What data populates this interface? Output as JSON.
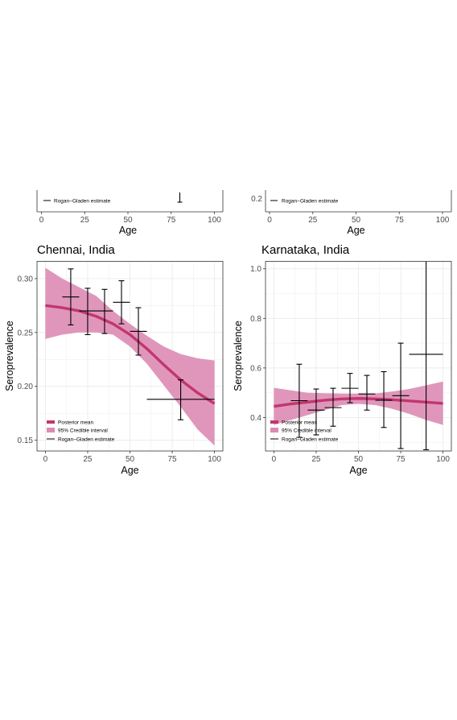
{
  "colors": {
    "mean": "#c2366f",
    "ci": "#dd8bb3",
    "estimate": "#000000",
    "panel_border": "#333333",
    "grid": "#ebebeb"
  },
  "legend": {
    "mean": "Posterior mean",
    "ci": "95% Credible interval",
    "estimate": "Rogan−Gladen estimate"
  },
  "top_strip": {
    "x_title": "Age",
    "x_ticks": [
      "0",
      "25",
      "50",
      "75",
      "100"
    ],
    "right_partial_y_tick": "0.2",
    "legend_text": "Rogan−Gladen estimate"
  },
  "chart_data": [
    {
      "type": "line",
      "title": "Chennai, India",
      "xlabel": "Age",
      "ylabel": "Seroprevalence",
      "xlim": [
        0,
        100
      ],
      "ylim": [
        0.14,
        0.316
      ],
      "x_ticks": [
        0,
        25,
        50,
        75,
        100
      ],
      "y_ticks": [
        0.15,
        0.2,
        0.25,
        0.3
      ],
      "y_tick_labels": [
        "0.15",
        "0.20",
        "0.25",
        "0.30"
      ],
      "grid": true,
      "legend_position": "bottom-left",
      "series": [
        {
          "name": "Posterior mean",
          "x": [
            0,
            10,
            20,
            30,
            40,
            50,
            60,
            70,
            80,
            90,
            100
          ],
          "y": [
            0.275,
            0.273,
            0.27,
            0.265,
            0.258,
            0.248,
            0.235,
            0.22,
            0.206,
            0.194,
            0.184
          ]
        },
        {
          "name": "95% Credible interval",
          "x": [
            0,
            10,
            20,
            30,
            40,
            50,
            60,
            70,
            80,
            90,
            100
          ],
          "lower": [
            0.244,
            0.248,
            0.25,
            0.25,
            0.248,
            0.237,
            0.221,
            0.201,
            0.181,
            0.16,
            0.145
          ],
          "upper": [
            0.31,
            0.3,
            0.292,
            0.284,
            0.27,
            0.258,
            0.247,
            0.237,
            0.23,
            0.226,
            0.224
          ]
        },
        {
          "name": "Rogan−Gladen estimate",
          "points": [
            {
              "x": 15,
              "x_min": 10,
              "x_max": 20,
              "y": 0.283,
              "y_min": 0.257,
              "y_max": 0.309
            },
            {
              "x": 25,
              "x_min": 20,
              "x_max": 30,
              "y": 0.27,
              "y_min": 0.248,
              "y_max": 0.291
            },
            {
              "x": 35,
              "x_min": 30,
              "x_max": 40,
              "y": 0.27,
              "y_min": 0.249,
              "y_max": 0.29
            },
            {
              "x": 45,
              "x_min": 40,
              "x_max": 50,
              "y": 0.278,
              "y_min": 0.258,
              "y_max": 0.298
            },
            {
              "x": 55,
              "x_min": 50,
              "x_max": 60,
              "y": 0.251,
              "y_min": 0.229,
              "y_max": 0.273
            },
            {
              "x": 80,
              "x_min": 60,
              "x_max": 100,
              "y": 0.188,
              "y_min": 0.169,
              "y_max": 0.206
            }
          ]
        }
      ]
    },
    {
      "type": "line",
      "title": "Karnataka, India",
      "xlabel": "Age",
      "ylabel": "Seroprevalence",
      "xlim": [
        0,
        100
      ],
      "ylim": [
        0.265,
        1.03
      ],
      "x_ticks": [
        0,
        25,
        50,
        75,
        100
      ],
      "y_ticks": [
        0.4,
        0.6,
        0.8,
        1.0
      ],
      "y_tick_labels": [
        "0.4",
        "0.6",
        "0.8",
        "1.0"
      ],
      "grid": true,
      "legend_position": "bottom-left",
      "series": [
        {
          "name": "Posterior mean",
          "x": [
            0,
            10,
            20,
            30,
            40,
            50,
            60,
            70,
            80,
            90,
            100
          ],
          "y": [
            0.445,
            0.455,
            0.462,
            0.47,
            0.475,
            0.477,
            0.475,
            0.472,
            0.467,
            0.462,
            0.457
          ]
        },
        {
          "name": "95% Credible interval",
          "x": [
            0,
            10,
            20,
            30,
            40,
            50,
            60,
            70,
            80,
            90,
            100
          ],
          "lower": [
            0.37,
            0.39,
            0.41,
            0.43,
            0.45,
            0.455,
            0.45,
            0.435,
            0.415,
            0.39,
            0.37
          ],
          "upper": [
            0.52,
            0.51,
            0.5,
            0.498,
            0.497,
            0.497,
            0.497,
            0.505,
            0.515,
            0.53,
            0.545
          ]
        },
        {
          "name": "Rogan−Gladen estimate",
          "points": [
            {
              "x": 15,
              "x_min": 10,
              "x_max": 20,
              "y": 0.468,
              "y_min": 0.32,
              "y_max": 0.615
            },
            {
              "x": 25,
              "x_min": 20,
              "x_max": 30,
              "y": 0.43,
              "y_min": 0.33,
              "y_max": 0.515
            },
            {
              "x": 35,
              "x_min": 30,
              "x_max": 40,
              "y": 0.44,
              "y_min": 0.365,
              "y_max": 0.518
            },
            {
              "x": 45,
              "x_min": 40,
              "x_max": 50,
              "y": 0.518,
              "y_min": 0.46,
              "y_max": 0.578
            },
            {
              "x": 55,
              "x_min": 50,
              "x_max": 60,
              "y": 0.495,
              "y_min": 0.43,
              "y_max": 0.57
            },
            {
              "x": 65,
              "x_min": 60,
              "x_max": 70,
              "y": 0.47,
              "y_min": 0.36,
              "y_max": 0.585
            },
            {
              "x": 75,
              "x_min": 70,
              "x_max": 80,
              "y": 0.488,
              "y_min": 0.275,
              "y_max": 0.7
            },
            {
              "x": 90,
              "x_min": 80,
              "x_max": 100,
              "y": 0.655,
              "y_min": 0.27,
              "y_max": 1.04
            }
          ]
        }
      ]
    }
  ]
}
